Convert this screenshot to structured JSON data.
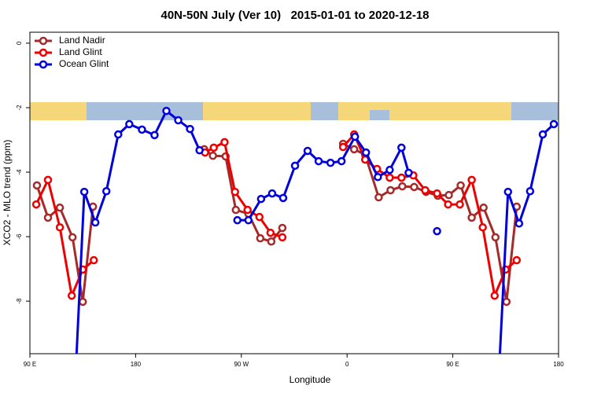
{
  "chart_data": {
    "type": "line",
    "title": "40N-50N July (Ver 10)   2015-01-01 to 2020-12-18",
    "xlabel": "Longitude",
    "ylabel": "XCO2 - MLO trend (ppm)",
    "xlim": [
      90,
      540
    ],
    "ylim": [
      -9.63,
      0.34
    ],
    "xticks": [
      {
        "value": 90,
        "label": "90 E"
      },
      180,
      {
        "value": 270,
        "label": "90 W"
      },
      {
        "value": 360,
        "label": "0"
      },
      {
        "value": 450,
        "label": "90 E"
      },
      {
        "value": 540,
        "label": "180"
      }
    ],
    "yticks": [
      0,
      -2,
      -4,
      -6,
      -8
    ],
    "legend": "top-left",
    "series": [
      {
        "name": "Land Nadir",
        "color": "#a52a2a",
        "x": [
          96,
          105.4,
          115.5,
          126.3,
          135,
          143.7,
          null,
          238.4,
          245.8,
          256.6,
          265.3,
          276,
          286.1,
          295.5,
          304.9,
          null,
          356.6,
          366,
          375.4,
          386.9,
          397,
          407,
          417.1,
          427.2,
          437.2,
          446.6,
          456.7,
          466.1,
          476.2,
          486.3,
          495.7,
          504.4
        ],
        "values": [
          -4.41,
          -5.41,
          -5.1,
          -6.02,
          -8.02,
          -5.07,
          null,
          -3.29,
          -3.49,
          -3.51,
          -5.17,
          -5.29,
          -6.05,
          -6.15,
          -5.73,
          null,
          -3.12,
          -3.29,
          -3.46,
          -4.78,
          -4.56,
          -4.44,
          -4.46,
          -4.61,
          -4.73,
          -4.71,
          -4.41,
          -5.41,
          -5.1,
          -6.02,
          -8.02,
          -5.07
        ]
      },
      {
        "name": "Land Glint",
        "color": "#ee0000",
        "x": [
          95.4,
          105.4,
          115.5,
          125.6,
          135,
          144.4,
          null,
          239.1,
          246.5,
          255.7,
          264.6,
          275.3,
          285.4,
          294.8,
          304.9,
          null,
          356.6,
          366,
          375.4,
          385.5,
          396.3,
          406.3,
          416.4,
          426.5,
          436.6,
          446,
          456,
          466.1,
          475.5,
          485.6,
          495,
          504.4
        ],
        "values": [
          -5.0,
          -4.24,
          -5.71,
          -7.83,
          -7.02,
          -6.73,
          null,
          -3.39,
          -3.24,
          -3.07,
          -4.61,
          -5.17,
          -5.39,
          -5.88,
          -6.02,
          null,
          -3.22,
          -2.83,
          -3.61,
          -3.9,
          -4.17,
          -4.17,
          -4.1,
          -4.56,
          -4.66,
          -5.0,
          -5.0,
          -4.24,
          -5.71,
          -7.83,
          -7.02,
          -6.73
        ]
      },
      {
        "name": "Ocean Glint",
        "color": "#0000dd",
        "x": [
          128.6,
          136.3,
          145.7,
          155.1,
          165.2,
          174.6,
          185.4,
          196.1,
          206.2,
          216.3,
          226.3,
          234.4,
          null,
          266.6,
          276,
          286.8,
          296.2,
          305.6,
          315.7,
          326.4,
          335.8,
          345.9,
          355.3,
          366.7,
          376.1,
          386.2,
          396.3,
          406.3,
          412.4,
          null,
          436.6,
          null,
          488.9,
          497,
          506.4,
          515.8,
          526.6,
          536
        ],
        "values": [
          -10.5,
          -4.61,
          -5.56,
          -4.59,
          -2.83,
          -2.51,
          -2.68,
          -2.85,
          -2.1,
          -2.39,
          -2.66,
          -3.32,
          null,
          -5.49,
          -5.49,
          -4.83,
          -4.66,
          -4.8,
          -3.8,
          -3.34,
          -3.66,
          -3.71,
          -3.66,
          -2.9,
          -3.39,
          -4.15,
          -3.93,
          -3.24,
          -4.02,
          null,
          -5.83,
          null,
          -10.5,
          -4.61,
          -5.59,
          -4.59,
          -2.83,
          -2.51
        ]
      }
    ]
  }
}
